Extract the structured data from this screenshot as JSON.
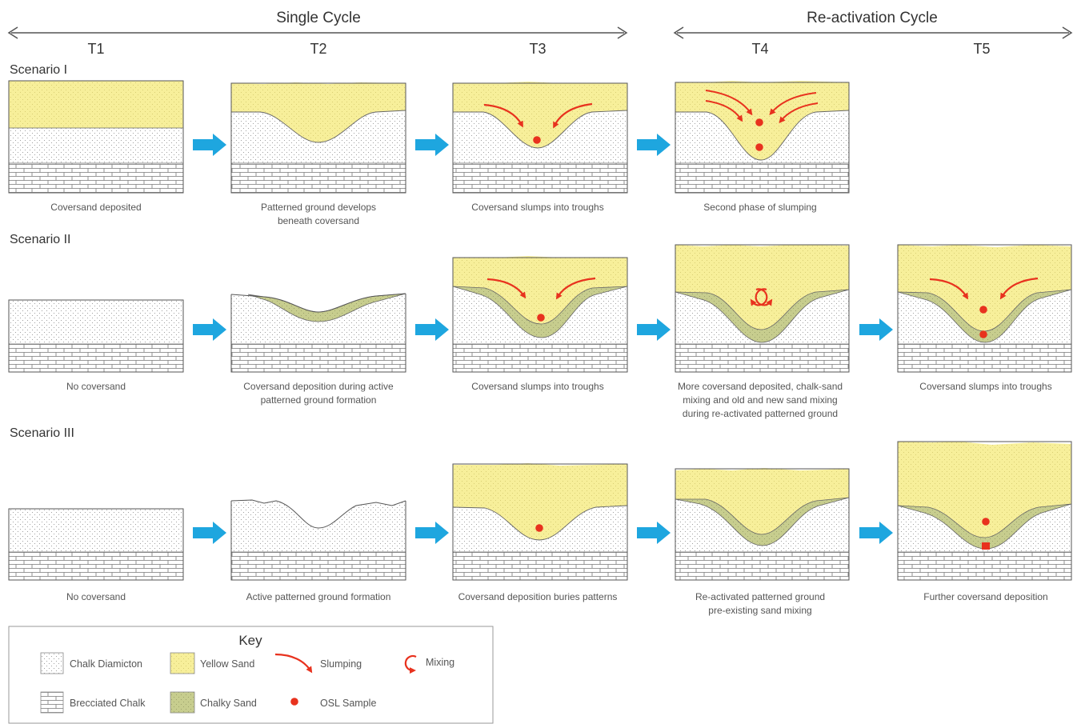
{
  "header": {
    "single_cycle": "Single Cycle",
    "reactivation_cycle": "Re-activation Cycle"
  },
  "columns": [
    "T1",
    "T2",
    "T3",
    "T4",
    "T5"
  ],
  "scenarios": [
    {
      "label": "Scenario I",
      "captions": [
        [
          "Coversand deposited"
        ],
        [
          "Patterned ground develops",
          "beneath coversand"
        ],
        [
          "Coversand slumps into troughs"
        ],
        [
          "Second phase of slumping"
        ]
      ]
    },
    {
      "label": "Scenario II",
      "captions": [
        [
          "No coversand"
        ],
        [
          "Coversand deposition during active",
          "patterned ground formation"
        ],
        [
          "Coversand slumps into troughs"
        ],
        [
          "More coversand deposited, chalk-sand",
          "mixing and old and new sand mixing",
          "during re-activated patterned ground"
        ],
        [
          "Coversand slumps into troughs"
        ]
      ]
    },
    {
      "label": "Scenario III",
      "captions": [
        [
          "No coversand"
        ],
        [
          "Active patterned ground formation"
        ],
        [
          "Coversand deposition buries patterns"
        ],
        [
          "Re-activated patterned ground",
          "pre-existing sand mixing"
        ],
        [
          "Further coversand deposition"
        ]
      ]
    }
  ],
  "key": {
    "title": "Key",
    "items": {
      "chalk_diamicton": "Chalk Diamicton",
      "yellow_sand": "Yellow Sand",
      "slumping": "Slumping",
      "mixing": "Mixing",
      "brecciated_chalk": "Brecciated Chalk",
      "chalky_sand": "Chalky Sand",
      "osl_sample": "OSL Sample"
    }
  },
  "colors": {
    "yellow_sand": "#f7ef9a",
    "chalky_sand": "#c7cd8e",
    "slump_red": "#e8321e",
    "arrow_blue": "#1ea6df",
    "outline": "#555555"
  }
}
